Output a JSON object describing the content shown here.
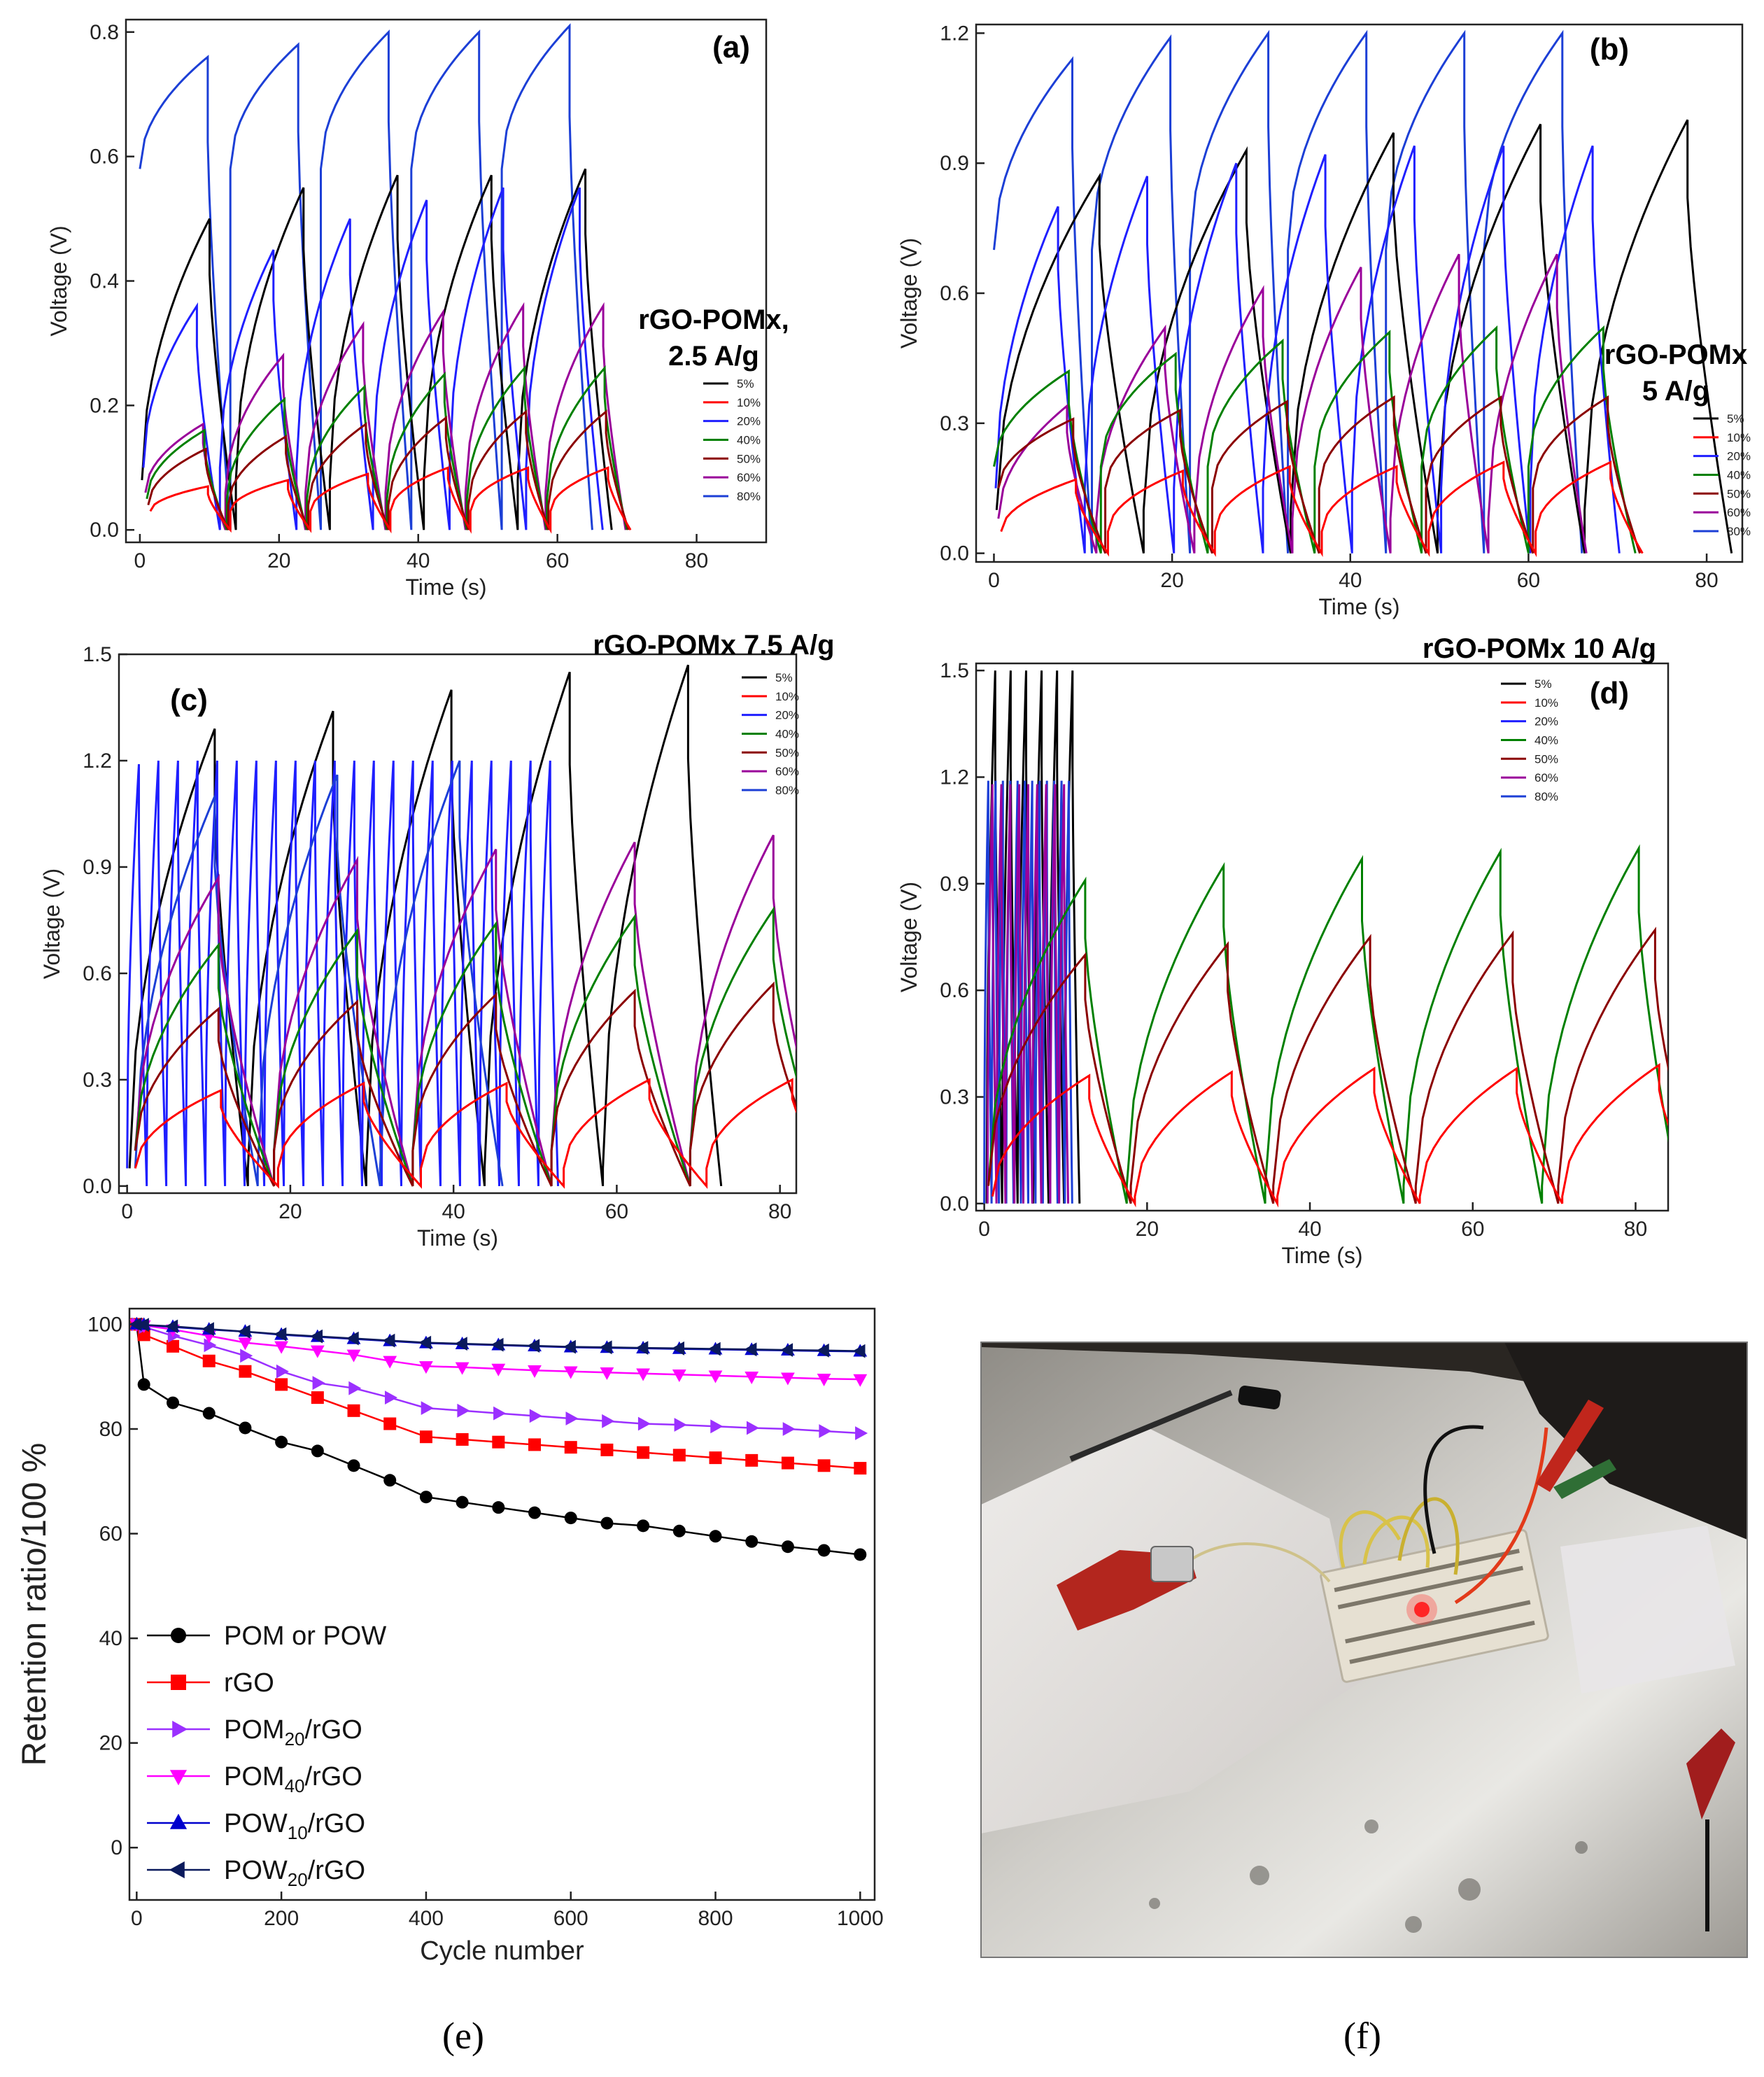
{
  "series_colors": {
    "5%": "#000000",
    "10%": "#ff0000",
    "20%": "#1f1fff",
    "40%": "#008000",
    "50%": "#8b0000",
    "60%": "#9a009a",
    "80%": "#1c3fd6"
  },
  "series_names": [
    "5%",
    "10%",
    "20%",
    "40%",
    "50%",
    "60%",
    "80%"
  ],
  "photo_caption": "(f)",
  "photo_description_icon": "photo-icon",
  "chart_data": [
    {
      "id": "a",
      "type": "line",
      "tag": "(a)",
      "annotation": [
        "rGO-POMx,",
        "2.5 A/g"
      ],
      "xlabel": "Time (s)",
      "ylabel": "Voltage (V)",
      "xlim": [
        -2,
        90
      ],
      "ylim": [
        -0.02,
        0.82
      ],
      "xticks": [
        0,
        20,
        40,
        60,
        80
      ],
      "yticks": [
        0.0,
        0.2,
        0.4,
        0.6,
        0.8
      ],
      "ydec": 1,
      "legend": [
        "5%",
        "10%",
        "20%",
        "40%",
        "50%",
        "60%",
        "80%"
      ],
      "series": [
        {
          "name": "80%",
          "peaks": [
            0.76,
            0.78,
            0.8,
            0.8,
            0.81
          ],
          "period": 13.0,
          "charge_frac": 0.75,
          "start": 0.0,
          "ir": 0.58,
          "cycles": 5
        },
        {
          "name": "5%",
          "peaks": [
            0.5,
            0.55,
            0.57,
            0.57,
            0.58
          ],
          "period": 13.5,
          "charge_frac": 0.72,
          "start": 0.3,
          "ir": 0.08,
          "cycles": 5
        },
        {
          "name": "20%",
          "peaks": [
            0.36,
            0.45,
            0.5,
            0.53,
            0.55
          ],
          "period": 11.0,
          "charge_frac": 0.7,
          "start": 0.5,
          "ir": 0.1,
          "cycles": 6
        },
        {
          "name": "60%",
          "peaks": [
            0.17,
            0.28,
            0.33,
            0.35,
            0.36
          ],
          "period": 11.5,
          "charge_frac": 0.72,
          "start": 0.8,
          "ir": 0.06,
          "cycles": 6
        },
        {
          "name": "40%",
          "peaks": [
            0.16,
            0.21,
            0.23,
            0.25,
            0.26
          ],
          "period": 11.5,
          "charge_frac": 0.72,
          "start": 1.0,
          "ir": 0.05,
          "cycles": 6
        },
        {
          "name": "50%",
          "peaks": [
            0.13,
            0.15,
            0.17,
            0.18,
            0.19
          ],
          "period": 11.5,
          "charge_frac": 0.72,
          "start": 1.2,
          "ir": 0.04,
          "cycles": 6
        },
        {
          "name": "10%",
          "peaks": [
            0.07,
            0.08,
            0.09,
            0.1,
            0.1
          ],
          "period": 11.5,
          "charge_frac": 0.72,
          "start": 1.5,
          "ir": 0.03,
          "cycles": 6
        }
      ]
    },
    {
      "id": "b",
      "type": "line",
      "tag": "(b)",
      "annotation": [
        "rGO-POMx",
        "5 A/g"
      ],
      "xlabel": "Time (s)",
      "ylabel": "Voltage (V)",
      "xlim": [
        -2,
        84
      ],
      "ylim": [
        -0.02,
        1.22
      ],
      "xticks": [
        0,
        20,
        40,
        60,
        80
      ],
      "yticks": [
        0.0,
        0.3,
        0.6,
        0.9,
        1.2
      ],
      "ydec": 1,
      "legend": [
        "5%",
        "10%",
        "20%",
        "40%",
        "50%",
        "60%",
        "80%"
      ],
      "series": [
        {
          "name": "80%",
          "peaks": [
            1.14,
            1.19,
            1.2,
            1.2,
            1.2
          ],
          "period": 11.0,
          "charge_frac": 0.8,
          "start": 0.0,
          "ir": 0.7,
          "cycles": 6
        },
        {
          "name": "5%",
          "peaks": [
            0.87,
            0.93,
            0.97,
            0.99,
            1.0
          ],
          "period": 16.5,
          "charge_frac": 0.7,
          "start": 0.3,
          "ir": 0.1,
          "cycles": 5
        },
        {
          "name": "20%",
          "peaks": [
            0.8,
            0.87,
            0.9,
            0.92,
            0.94
          ],
          "period": 10.0,
          "charge_frac": 0.7,
          "start": 0.2,
          "ir": 0.15,
          "cycles": 7
        },
        {
          "name": "60%",
          "peaks": [
            0.34,
            0.52,
            0.61,
            0.66,
            0.69
          ],
          "period": 11.0,
          "charge_frac": 0.7,
          "start": 0.5,
          "ir": 0.08,
          "cycles": 6
        },
        {
          "name": "40%",
          "peaks": [
            0.42,
            0.46,
            0.49,
            0.51,
            0.52
          ],
          "period": 12.0,
          "charge_frac": 0.7,
          "start": 0.0,
          "ir": 0.2,
          "cycles": 6
        },
        {
          "name": "50%",
          "peaks": [
            0.31,
            0.33,
            0.35,
            0.36,
            0.36
          ],
          "period": 12.0,
          "charge_frac": 0.7,
          "start": 0.5,
          "ir": 0.15,
          "cycles": 6
        },
        {
          "name": "10%",
          "peaks": [
            0.17,
            0.19,
            0.2,
            0.2,
            0.21
          ],
          "period": 12.0,
          "charge_frac": 0.7,
          "start": 0.8,
          "ir": 0.05,
          "cycles": 6
        }
      ]
    },
    {
      "id": "c",
      "type": "line",
      "tag": "(c)",
      "annotation": [
        "rGO-POMx 7.5 A/g"
      ],
      "xlabel": "Time (s)",
      "ylabel": "Voltage (V)",
      "xlim": [
        -1,
        82
      ],
      "ylim": [
        -0.02,
        1.5
      ],
      "xticks": [
        0,
        20,
        40,
        60,
        80
      ],
      "yticks": [
        0.0,
        0.3,
        0.6,
        0.9,
        1.2,
        1.5
      ],
      "ydec": 1,
      "legend": [
        "5%",
        "10%",
        "20%",
        "40%",
        "50%",
        "60%",
        "80%"
      ],
      "series": [
        {
          "name": "5%",
          "peaks": [
            1.29,
            1.34,
            1.4,
            1.45,
            1.47
          ],
          "period": 14.5,
          "charge_frac": 0.72,
          "start": 0.3,
          "ir": 0.05,
          "cycles": 5
        },
        {
          "name": "20%",
          "peaks": [
            1.19,
            1.2,
            1.2,
            1.2,
            1.2
          ],
          "period": 2.4,
          "charge_frac": 0.6,
          "start": 0.0,
          "ir": 0.05,
          "cycles": 22
        },
        {
          "name": "80%",
          "peaks": [
            1.1,
            1.16,
            1.2,
            1.2,
            1.2
          ],
          "period": 15.0,
          "charge_frac": 0.65,
          "start": 1.0,
          "ir": 0.05,
          "cycles": 3
        },
        {
          "name": "60%",
          "peaks": [
            0.87,
            0.92,
            0.95,
            0.97,
            0.99
          ],
          "period": 17.0,
          "charge_frac": 0.6,
          "start": 1.0,
          "ir": 0.1,
          "cycles": 5
        },
        {
          "name": "40%",
          "peaks": [
            0.68,
            0.72,
            0.74,
            0.76,
            0.78
          ],
          "period": 17.0,
          "charge_frac": 0.6,
          "start": 1.0,
          "ir": 0.1,
          "cycles": 5
        },
        {
          "name": "50%",
          "peaks": [
            0.5,
            0.52,
            0.54,
            0.55,
            0.57
          ],
          "period": 17.0,
          "charge_frac": 0.6,
          "start": 1.0,
          "ir": 0.1,
          "cycles": 5
        },
        {
          "name": "10%",
          "peaks": [
            0.27,
            0.29,
            0.29,
            0.3,
            0.3
          ],
          "period": 17.5,
          "charge_frac": 0.6,
          "start": 1.0,
          "ir": 0.05,
          "cycles": 5
        }
      ]
    },
    {
      "id": "d",
      "type": "line",
      "tag": "(d)",
      "annotation": [
        "rGO-POMx 10 A/g"
      ],
      "xlabel": "Time (s)",
      "ylabel": "Voltage (V)",
      "xlim": [
        -1,
        84
      ],
      "ylim": [
        -0.02,
        1.52
      ],
      "xticks": [
        0,
        20,
        40,
        60,
        80
      ],
      "yticks": [
        0.0,
        0.3,
        0.6,
        0.9,
        1.2,
        1.5
      ],
      "ydec": 1,
      "legend": [
        "5%",
        "10%",
        "20%",
        "40%",
        "50%",
        "60%",
        "80%"
      ],
      "series": [
        {
          "name": "5%",
          "peaks": [
            1.5,
            1.5,
            1.5,
            1.5,
            1.5
          ],
          "period": 1.9,
          "charge_frac": 0.55,
          "start": 0.3,
          "ir": 0.0,
          "cycles": 6
        },
        {
          "name": "80%",
          "peaks": [
            1.19,
            1.19,
            1.19,
            1.19,
            1.19
          ],
          "period": 0.9,
          "charge_frac": 0.55,
          "start": 0.0,
          "ir": 0.0,
          "cycles": 12
        },
        {
          "name": "60%",
          "peaks": [
            1.18,
            1.18,
            1.18,
            1.18,
            1.18
          ],
          "period": 1.1,
          "charge_frac": 0.55,
          "start": 0.4,
          "ir": 0.0,
          "cycles": 9
        },
        {
          "name": "40%",
          "peaks": [
            0.91,
            0.95,
            0.97,
            0.99,
            1.0
          ],
          "period": 17.0,
          "charge_frac": 0.7,
          "start": 0.5,
          "ir": 0.05,
          "cycles": 5
        },
        {
          "name": "50%",
          "peaks": [
            0.7,
            0.73,
            0.75,
            0.76,
            0.77
          ],
          "period": 17.5,
          "charge_frac": 0.68,
          "start": 0.5,
          "ir": 0.05,
          "cycles": 5
        },
        {
          "name": "10%",
          "peaks": [
            0.36,
            0.37,
            0.38,
            0.38,
            0.39
          ],
          "period": 17.5,
          "charge_frac": 0.68,
          "start": 1.0,
          "ir": 0.02,
          "cycles": 5
        }
      ]
    },
    {
      "id": "e",
      "type": "scatter",
      "tag": "(e)",
      "xlabel": "Cycle number",
      "ylabel": "Retention ratio/100 %",
      "xlim": [
        -10,
        1020
      ],
      "ylim": [
        -10,
        103
      ],
      "xticks": [
        0,
        200,
        400,
        600,
        800,
        1000
      ],
      "yticks": [
        0,
        20,
        40,
        60,
        80,
        100
      ],
      "ydec": 0,
      "x": [
        0,
        10,
        50,
        100,
        150,
        200,
        250,
        300,
        350,
        400,
        450,
        500,
        550,
        600,
        650,
        700,
        750,
        800,
        850,
        900,
        950,
        1000
      ],
      "series": [
        {
          "name": "POM or POW",
          "color": "#000000",
          "marker": "circle",
          "values": [
            100,
            88.5,
            85,
            83,
            80.2,
            77.5,
            75.8,
            73,
            70.2,
            67,
            66,
            65,
            64,
            63,
            62,
            61.5,
            60.5,
            59.5,
            58.5,
            57.5,
            56.8,
            56
          ]
        },
        {
          "name": "rGO",
          "color": "#ff0000",
          "marker": "square",
          "values": [
            100,
            98,
            95.8,
            93,
            91,
            88.5,
            86,
            83.5,
            81,
            78.5,
            78,
            77.5,
            77,
            76.5,
            76,
            75.5,
            75,
            74.5,
            74,
            73.5,
            73,
            72.5
          ]
        },
        {
          "name": "POM20/rGO",
          "color": "#9b30ff",
          "marker": "tri-right",
          "values": [
            100,
            99.5,
            97.8,
            96,
            94,
            91,
            88.8,
            87.8,
            86,
            84,
            83.5,
            83,
            82.5,
            82,
            81.5,
            81,
            80.8,
            80.5,
            80.2,
            80,
            79.6,
            79.2
          ]
        },
        {
          "name": "POM40/rGO",
          "color": "#ff00ff",
          "marker": "tri-down",
          "values": [
            100,
            99.8,
            99,
            97.8,
            96.5,
            95.8,
            95,
            94.2,
            93,
            92,
            91.8,
            91.5,
            91.2,
            91,
            90.8,
            90.6,
            90.4,
            90.2,
            90,
            89.8,
            89.6,
            89.5
          ]
        },
        {
          "name": "POW10/rGO",
          "color": "#0000cd",
          "marker": "tri-up",
          "values": [
            100,
            99.9,
            99.5,
            99,
            98.6,
            98,
            97.6,
            97.2,
            96.8,
            96.4,
            96.2,
            96,
            95.8,
            95.6,
            95.5,
            95.4,
            95.3,
            95.2,
            95.1,
            95,
            94.9,
            94.8
          ]
        },
        {
          "name": "POW20/rGO",
          "color": "#0b1a5c",
          "marker": "tri-left",
          "values": [
            100,
            99.9,
            99.6,
            99.1,
            98.6,
            98.1,
            97.7,
            97.3,
            96.9,
            96.5,
            96.3,
            96.1,
            95.9,
            95.7,
            95.6,
            95.5,
            95.4,
            95.3,
            95.2,
            95.1,
            95.0,
            94.9
          ]
        }
      ],
      "legend_labels": [
        {
          "base": "POM or POW",
          "sub": "",
          "tail": ""
        },
        {
          "base": "rGO",
          "sub": "",
          "tail": ""
        },
        {
          "base": "POM",
          "sub": "20",
          "tail": "/rGO"
        },
        {
          "base": "POM",
          "sub": "40",
          "tail": "/rGO"
        },
        {
          "base": "POW",
          "sub": "10",
          "tail": "/rGO"
        },
        {
          "base": "POW",
          "sub": "20",
          "tail": "/rGO"
        }
      ]
    }
  ]
}
